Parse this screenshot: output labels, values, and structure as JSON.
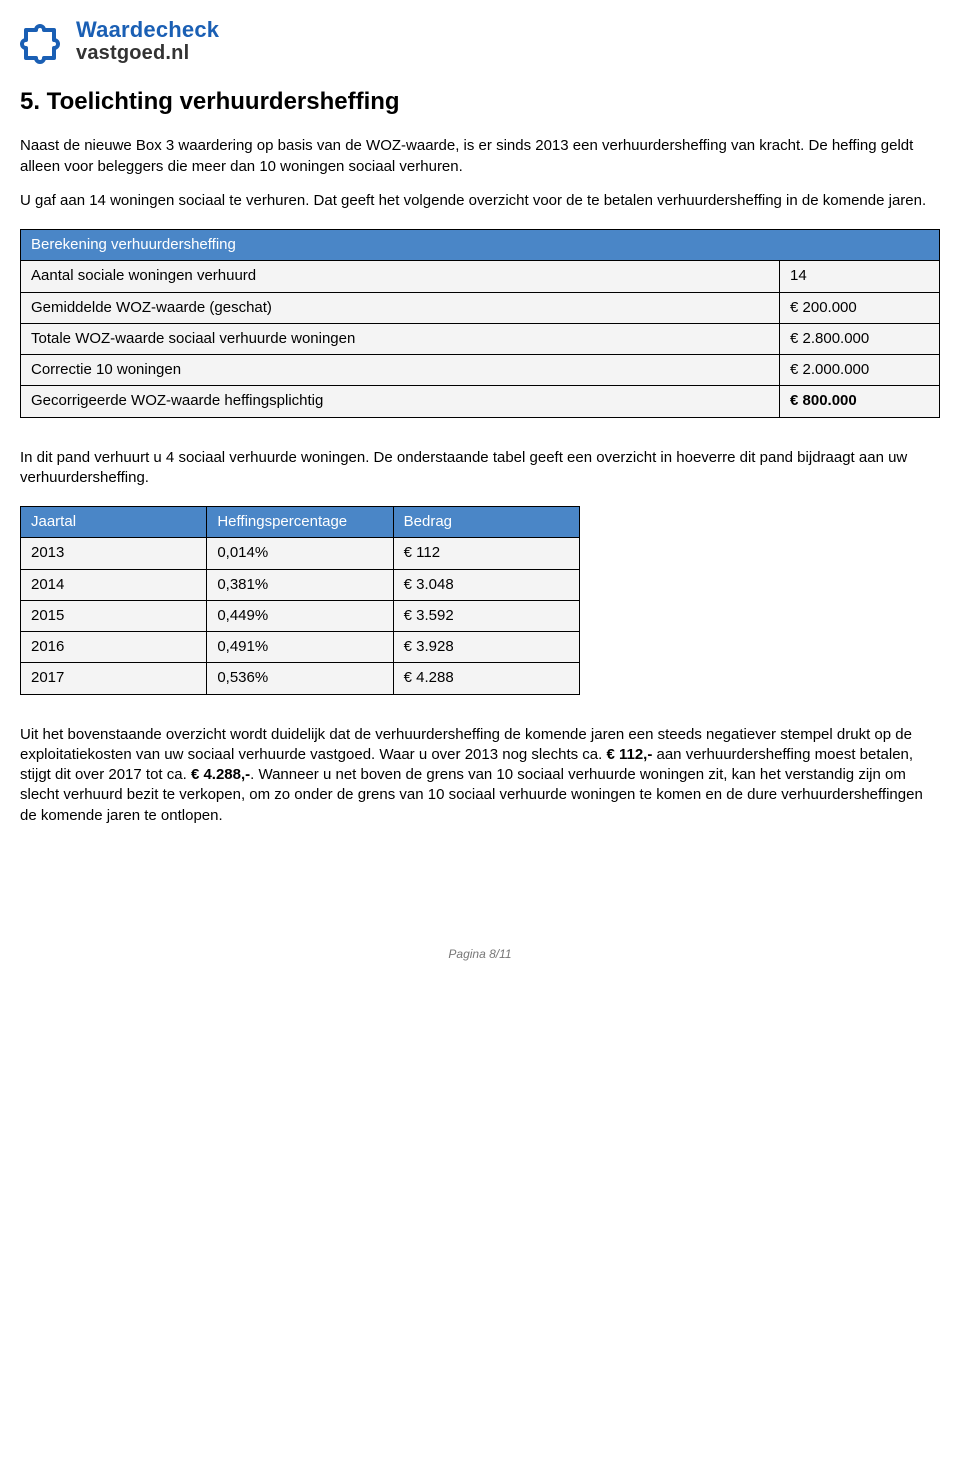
{
  "logo": {
    "top": "Waardecheck",
    "bottom": "vastgoed.nl",
    "icon_color_primary": "#1a5fb4",
    "icon_color_secondary": "#0d3a7a"
  },
  "section": {
    "title": "5. Toelichting verhuurdersheffing",
    "para1": "Naast de nieuwe Box 3 waardering op basis van de WOZ-waarde, is er sinds 2013 een verhuurdersheffing van kracht. De heffing geldt alleen voor beleggers die meer dan 10 woningen sociaal verhuren.",
    "para2": "U gaf aan 14 woningen sociaal te verhuren. Dat geeft het volgende overzicht voor de te betalen verhuurdersheffing in de komende jaren.",
    "para3": "In dit pand verhuurt u 4 sociaal verhuurde woningen. De onderstaande tabel geeft een overzicht in hoeverre dit pand bijdraagt aan uw verhuurdersheffing.",
    "para4_prefix": "Uit het bovenstaande overzicht wordt duidelijk dat de verhuurdersheffing de komende jaren een steeds negatiever stempel drukt op de exploitatiekosten van uw sociaal verhuurde vastgoed. Waar u over 2013 nog slechts ca. ",
    "para4_amount1": "€ 112,-",
    "para4_mid": " aan verhuurdersheffing moest betalen, stijgt dit over 2017 tot ca. ",
    "para4_amount2": "€ 4.288,-",
    "para4_suffix": ". Wanneer u net boven de grens van 10 sociaal verhuurde woningen zit, kan het verstandig zijn om slecht verhuurd bezit te verkopen, om zo onder de grens van 10 sociaal verhuurde woningen te komen en de dure verhuurdersheffingen de komende jaren te ontlopen."
  },
  "table1": {
    "header_bg": "#4a86c7",
    "header": "Berekening verhuurdersheffing",
    "rows": [
      {
        "label": "Aantal sociale woningen verhuurd",
        "value": "14"
      },
      {
        "label": "Gemiddelde WOZ-waarde (geschat)",
        "value": "€ 200.000"
      },
      {
        "label": "Totale WOZ-waarde sociaal verhuurde woningen",
        "value": "€ 2.800.000"
      },
      {
        "label": "Correctie 10 woningen",
        "value": "€ 2.000.000"
      },
      {
        "label": "Gecorrigeerde WOZ-waarde heffingsplichtig",
        "value": "€ 800.000",
        "emph": true
      }
    ]
  },
  "table2": {
    "header_bg": "#4a86c7",
    "columns": [
      "Jaartal",
      "Heffingspercentage",
      "Bedrag"
    ],
    "rows": [
      [
        "2013",
        "0,014%",
        "€ 112"
      ],
      [
        "2014",
        "0,381%",
        "€ 3.048"
      ],
      [
        "2015",
        "0,449%",
        "€ 3.592"
      ],
      [
        "2016",
        "0,491%",
        "€ 3.928"
      ],
      [
        "2017",
        "0,536%",
        "€ 4.288"
      ]
    ]
  },
  "footer": {
    "page": "Pagina 8/11"
  }
}
